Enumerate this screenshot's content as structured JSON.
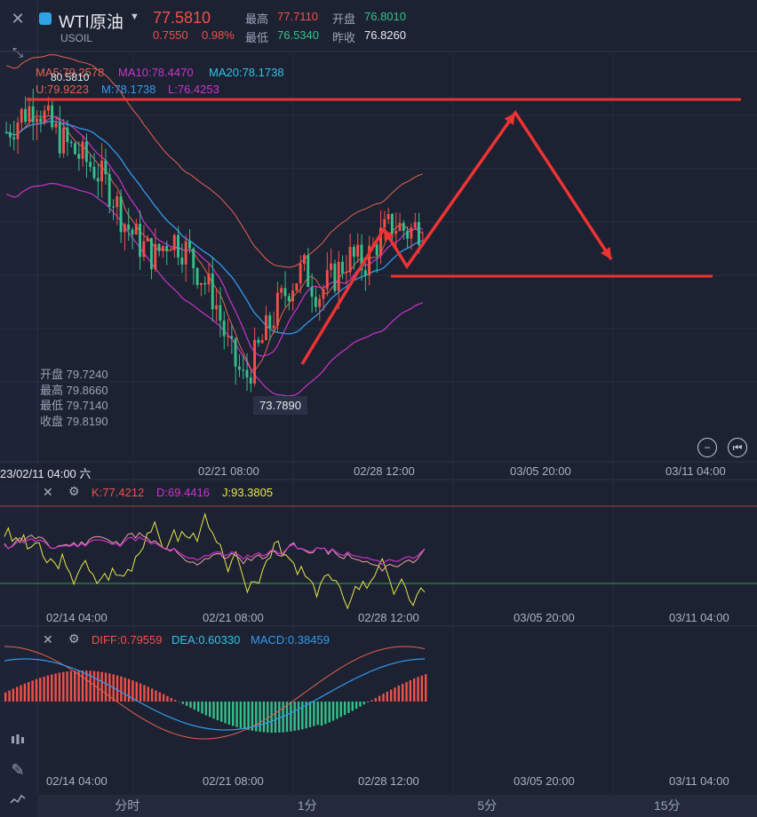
{
  "header": {
    "symbol": "WTI原油",
    "code": "USOIL",
    "price": "77.5810",
    "change": "0.7550",
    "change_pct": "0.98%",
    "high_label": "最高",
    "high": "77.7110",
    "open_label": "开盘",
    "open": "76.8010",
    "low_label": "最低",
    "low": "76.5340",
    "prev_label": "昨收",
    "prev": "76.8260"
  },
  "ma_legend": {
    "ma5": "MA5:79.2578",
    "ma10": "MA10:78.4470",
    "ma20": "MA20:78.1738",
    "u": "U:79.9223",
    "m": "M:78.1738",
    "l": "L:76.4253"
  },
  "price_labels": {
    "high_mark": "80.5810",
    "low_mark": "73.7890"
  },
  "tooltip": {
    "open": "开盘 79.7240",
    "high": "最高 79.8660",
    "low": "最低 79.7140",
    "close": "收盘 79.8190"
  },
  "time_axis": {
    "cursor": "23/02/11 04:00 六",
    "main": [
      "02/21 08:00",
      "02/28 12:00",
      "03/05 20:00",
      "03/11 04:00"
    ],
    "sub": [
      "02/14 04:00",
      "02/21 08:00",
      "02/28 12:00",
      "03/05 20:00",
      "03/11 04:00"
    ]
  },
  "kdj_legend": {
    "k": "K:77.4212",
    "d": "D:69.4416",
    "j": "J:93.3805"
  },
  "macd_legend": {
    "diff": "DIFF:0.79559",
    "dea": "DEA:0.60330",
    "macd": "MACD:0.38459"
  },
  "tabs": [
    "分时",
    "1分",
    "5分",
    "15分"
  ],
  "colors": {
    "up": "#f0514a",
    "down": "#35c08a",
    "annotation": "#ee3333",
    "ma5": "#e8604f",
    "ma10": "#cc33cc",
    "ma20": "#3399ee"
  },
  "chart_data": {
    "type": "candlestick",
    "y_axis_marks": {
      "high": 80.581,
      "low": 73.789
    },
    "candles_close_sample": [
      79.8,
      80.2,
      80.5,
      79.9,
      79.5,
      79.2,
      78.9,
      78.4,
      77.6,
      77.1,
      76.8,
      77.3,
      77.0,
      76.4,
      75.8,
      74.5,
      73.8,
      74.6,
      75.4,
      76.1,
      76.5,
      75.9,
      76.3,
      76.8,
      76.6,
      77.2,
      77.6,
      77.4,
      77.58
    ],
    "annotations": [
      "horizontal line at 80.58",
      "horizontal line at 77.2",
      "arrow path up then down"
    ]
  }
}
